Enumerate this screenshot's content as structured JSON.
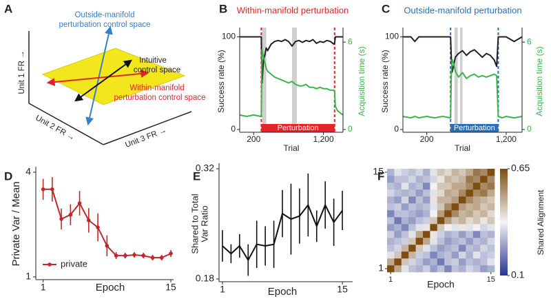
{
  "panel_labels": [
    "A",
    "B",
    "C",
    "D",
    "E",
    "F"
  ],
  "diagram": {
    "outside_manifold": [
      "Outside-manifold",
      "perturbation control space"
    ],
    "intuitive": [
      "Intuitive",
      "control space"
    ],
    "within_manifold": [
      "Within-manifold",
      "perturbation control space"
    ],
    "axes": [
      "Unit 1 FR →",
      "Unit 2 FR →",
      "Unit 3 FR →"
    ]
  },
  "chart_data": [
    {
      "type": "line",
      "title": "Within-manifold perturbation",
      "title_color": "#e3242b",
      "xlabel": "Trial",
      "ylabel": "Success rate (%)",
      "y2label": "Acquisition time (s)",
      "x": [
        0,
        100,
        200,
        300,
        310,
        320,
        340,
        360,
        380,
        400,
        450,
        500,
        550,
        600,
        650,
        700,
        750,
        800,
        850,
        900,
        950,
        1000,
        1050,
        1100,
        1150,
        1200,
        1250,
        1300,
        1350,
        1360,
        1370,
        1400,
        1450,
        1480
      ],
      "series": [
        {
          "color": "#231f20",
          "values": [
            100,
            100,
            100,
            100,
            100,
            50,
            75,
            80,
            88,
            85,
            92,
            95,
            96,
            95,
            97,
            95,
            90,
            95,
            96,
            94,
            96,
            95,
            97,
            93,
            95,
            94,
            96,
            95,
            92,
            93,
            100,
            100,
            100,
            100
          ]
        },
        {
          "color": "#3cb44b",
          "axis": "y2",
          "values": [
            1.0,
            0.9,
            1.0,
            0.9,
            1.0,
            5.5,
            5.0,
            4.6,
            4.2,
            4.0,
            3.8,
            3.6,
            3.5,
            3.4,
            3.3,
            3.2,
            3.3,
            3.1,
            3.0,
            3.0,
            3.1,
            2.9,
            2.9,
            2.8,
            2.9,
            2.8,
            2.8,
            2.7,
            2.7,
            2.6,
            1.6,
            1.3,
            1.1,
            1.0
          ]
        }
      ],
      "xlim": [
        0,
        1480
      ],
      "xticks": [
        200,
        {
          "value": 1200,
          "label": "1,200"
        }
      ],
      "ylim": [
        0,
        110
      ],
      "yticks": [
        0,
        100
      ],
      "y2lim": [
        0,
        7
      ],
      "y2ticks": [
        0,
        6
      ],
      "shaded_ranges": [
        [
          320,
          380
        ],
        [
          750,
          820
        ]
      ],
      "perturbation": {
        "label": "Perturbation",
        "range": [
          310,
          1360
        ],
        "color": "#e3242b"
      }
    },
    {
      "type": "line",
      "title": "Outside-manifold perturbation",
      "title_color": "#2d6eb5",
      "xlabel": "Trial",
      "ylabel": "Success rate (%)",
      "y2label": "Acquisition time (s)",
      "x": [
        -100,
        0,
        50,
        100,
        200,
        300,
        400,
        500,
        510,
        520,
        540,
        560,
        580,
        600,
        650,
        700,
        750,
        800,
        850,
        900,
        950,
        1000,
        1050,
        1080,
        1100,
        1150,
        1200,
        1300,
        1400
      ],
      "series": [
        {
          "color": "#231f20",
          "values": [
            100,
            100,
            95,
            100,
            100,
            100,
            100,
            100,
            75,
            62,
            70,
            78,
            80,
            82,
            85,
            80,
            84,
            86,
            82,
            78,
            82,
            80,
            75,
            68,
            100,
            100,
            100,
            95,
            100
          ]
        },
        {
          "color": "#3cb44b",
          "axis": "y2",
          "values": [
            0.9,
            0.8,
            0.9,
            0.8,
            0.9,
            0.8,
            0.9,
            0.8,
            4.0,
            4.8,
            4.5,
            4.0,
            3.8,
            3.6,
            3.9,
            3.5,
            3.7,
            3.8,
            3.6,
            3.7,
            3.6,
            3.7,
            3.8,
            3.7,
            0.9,
            0.8,
            0.9,
            0.8,
            0.9
          ]
        }
      ],
      "xlim": [
        -100,
        1400
      ],
      "xticks": [
        200,
        {
          "value": 1200,
          "label": "1,200"
        }
      ],
      "ylim": [
        0,
        110
      ],
      "yticks": [
        0,
        100
      ],
      "y2lim": [
        0,
        7
      ],
      "y2ticks": [
        0,
        6
      ],
      "shaded_ranges": [
        [
          550,
          590
        ],
        [
          620,
          650
        ]
      ],
      "perturbation": {
        "label": "Perturbation",
        "range": [
          500,
          1100
        ],
        "color": "#2d6eb5"
      }
    },
    {
      "type": "errorbar",
      "xlabel": "Epoch",
      "ylabel": "Private Var / Mean",
      "x": [
        1,
        2,
        3,
        4,
        5,
        6,
        7,
        8,
        9,
        10,
        11,
        12,
        13,
        14,
        15
      ],
      "series": [
        {
          "name": "private",
          "color": "#c0272d",
          "markers": true,
          "values": [
            3.51,
            3.51,
            2.66,
            2.78,
            3.11,
            2.62,
            2.42,
            1.89,
            1.61,
            1.61,
            1.63,
            1.61,
            1.55,
            1.55,
            1.67
          ],
          "errors": [
            0.3,
            0.35,
            0.3,
            0.3,
            0.35,
            0.35,
            0.4,
            0.3,
            0.1,
            0.08,
            0.08,
            0.08,
            0.08,
            0.08,
            0.1
          ]
        }
      ],
      "xlim": [
        0.2,
        15.3
      ],
      "xticks": [
        1,
        15
      ],
      "ylim": [
        1,
        4
      ],
      "yticks": [
        1,
        4
      ],
      "legend": "lower left"
    },
    {
      "type": "errorbar",
      "xlabel": "Epoch",
      "ylabel": [
        "Shared to Total",
        "Var Ratio"
      ],
      "x": [
        1,
        2,
        3,
        4,
        5,
        6,
        7,
        8,
        9,
        10,
        11,
        12,
        13,
        14,
        15
      ],
      "series": [
        {
          "color": "#111111",
          "markers": false,
          "values": [
            0.222,
            0.212,
            0.222,
            0.204,
            0.224,
            0.222,
            0.224,
            0.263,
            0.256,
            0.26,
            0.274,
            0.247,
            0.274,
            0.252,
            0.267
          ],
          "errors": [
            0.02,
            0.012,
            0.015,
            0.02,
            0.03,
            0.025,
            0.03,
            0.03,
            0.045,
            0.035,
            0.04,
            0.02,
            0.03,
            0.03,
            0.025
          ]
        }
      ],
      "xlim": [
        0.6,
        16.2
      ],
      "xticks": [
        1,
        15
      ],
      "ylim": [
        0.18,
        0.32
      ],
      "yticks": [
        0.18,
        0.32
      ]
    },
    {
      "type": "heatmap",
      "xlabel": "Epoch",
      "colorbar_label": "Shared Alignment",
      "xlim": [
        0.5,
        15.5
      ],
      "ylim": [
        0.5,
        15.5
      ],
      "xticks": [
        1,
        15
      ],
      "yticks": [
        1,
        15
      ],
      "zlim": [
        0.1,
        0.65
      ],
      "zticks": [
        0.1,
        0.65
      ],
      "colors": [
        "#26348f",
        "#f4f4f4",
        "#7d4d12"
      ],
      "z": [
        [
          0.65,
          0.5,
          0.35,
          0.3,
          0.28,
          0.32,
          0.25,
          0.3,
          0.22,
          0.3,
          0.28,
          0.33,
          0.3,
          0.25,
          0.28
        ],
        [
          0.5,
          0.65,
          0.45,
          0.33,
          0.3,
          0.25,
          0.28,
          0.2,
          0.3,
          0.32,
          0.25,
          0.3,
          0.28,
          0.3,
          0.35
        ],
        [
          0.35,
          0.45,
          0.65,
          0.48,
          0.32,
          0.3,
          0.22,
          0.28,
          0.3,
          0.25,
          0.33,
          0.28,
          0.35,
          0.3,
          0.32
        ],
        [
          0.3,
          0.33,
          0.48,
          0.65,
          0.45,
          0.35,
          0.3,
          0.25,
          0.28,
          0.3,
          0.22,
          0.3,
          0.28,
          0.33,
          0.3
        ],
        [
          0.28,
          0.3,
          0.32,
          0.45,
          0.65,
          0.5,
          0.35,
          0.3,
          0.25,
          0.28,
          0.3,
          0.25,
          0.3,
          0.28,
          0.33
        ],
        [
          0.32,
          0.25,
          0.3,
          0.35,
          0.5,
          0.65,
          0.4,
          0.32,
          0.28,
          0.3,
          0.25,
          0.3,
          0.22,
          0.3,
          0.28
        ],
        [
          0.25,
          0.28,
          0.22,
          0.3,
          0.35,
          0.4,
          0.65,
          0.45,
          0.38,
          0.35,
          0.4,
          0.35,
          0.38,
          0.33,
          0.35
        ],
        [
          0.3,
          0.2,
          0.28,
          0.25,
          0.3,
          0.32,
          0.45,
          0.65,
          0.52,
          0.45,
          0.48,
          0.42,
          0.45,
          0.4,
          0.45
        ],
        [
          0.22,
          0.3,
          0.3,
          0.28,
          0.25,
          0.28,
          0.38,
          0.52,
          0.65,
          0.55,
          0.48,
          0.5,
          0.45,
          0.48,
          0.42
        ],
        [
          0.3,
          0.32,
          0.25,
          0.3,
          0.28,
          0.3,
          0.35,
          0.45,
          0.55,
          0.65,
          0.52,
          0.48,
          0.5,
          0.45,
          0.48
        ],
        [
          0.28,
          0.25,
          0.33,
          0.22,
          0.3,
          0.25,
          0.4,
          0.48,
          0.48,
          0.52,
          0.65,
          0.55,
          0.5,
          0.48,
          0.45
        ],
        [
          0.33,
          0.3,
          0.28,
          0.3,
          0.25,
          0.3,
          0.35,
          0.42,
          0.5,
          0.48,
          0.55,
          0.65,
          0.55,
          0.58,
          0.5
        ],
        [
          0.3,
          0.28,
          0.35,
          0.28,
          0.3,
          0.22,
          0.38,
          0.45,
          0.45,
          0.5,
          0.5,
          0.55,
          0.65,
          0.55,
          0.58
        ],
        [
          0.25,
          0.3,
          0.3,
          0.33,
          0.28,
          0.3,
          0.33,
          0.4,
          0.48,
          0.45,
          0.48,
          0.58,
          0.55,
          0.65,
          0.55
        ],
        [
          0.28,
          0.35,
          0.32,
          0.3,
          0.33,
          0.28,
          0.35,
          0.45,
          0.42,
          0.48,
          0.45,
          0.5,
          0.58,
          0.55,
          0.65
        ]
      ]
    }
  ]
}
